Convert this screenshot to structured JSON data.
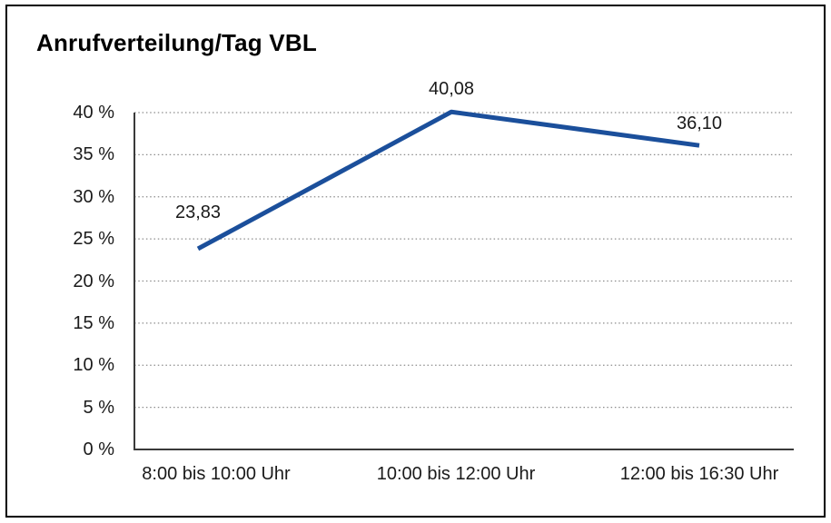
{
  "title": "Anrufverteilung/Tag VBL",
  "chart_data": {
    "type": "line",
    "title": "Anrufverteilung/Tag VBL",
    "categories": [
      "8:00 bis 10:00 Uhr",
      "10:00 bis 12:00 Uhr",
      "12:00 bis 16:30 Uhr"
    ],
    "values": [
      23.83,
      40.08,
      36.1
    ],
    "data_labels": [
      "23,83",
      "40,08",
      "36,10"
    ],
    "y_tick_labels": [
      "0 %",
      "5 %",
      "10 %",
      "15 %",
      "20 %",
      "25 %",
      "30 %",
      "35 %",
      "40 %"
    ],
    "ylim": [
      0,
      40
    ],
    "y_step": 5,
    "xlabel": "",
    "ylabel": "",
    "legend": "none",
    "grid": "horizontal-dotted",
    "decimal_separator": ","
  },
  "colors": {
    "line": "#1b4f9b",
    "grid": "#8c8c8c",
    "axis": "#3a3a3a",
    "text": "#1a1a1a",
    "background": "#ffffff",
    "frame_border": "#000000"
  }
}
